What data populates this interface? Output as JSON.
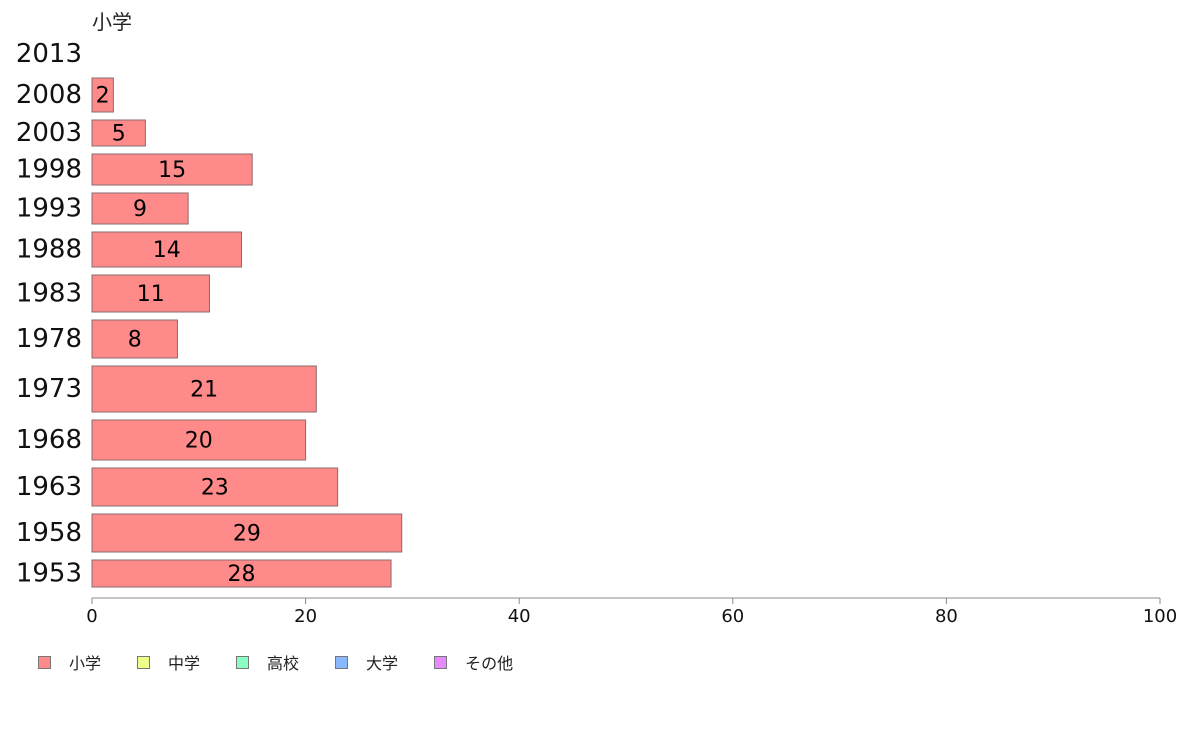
{
  "chart_data": {
    "type": "bar",
    "orientation": "horizontal",
    "title": "小学",
    "categories": [
      "2013",
      "2008",
      "2003",
      "1998",
      "1993",
      "1988",
      "1983",
      "1978",
      "1973",
      "1968",
      "1963",
      "1958",
      "1953"
    ],
    "series": [
      {
        "name": "小学",
        "color": "#ff8a8a",
        "values": [
          null,
          2,
          5,
          15,
          9,
          14,
          11,
          8,
          21,
          20,
          23,
          29,
          28
        ]
      }
    ],
    "xlim": [
      0,
      100
    ],
    "xticks": [
      "0",
      "20",
      "40",
      "60",
      "80",
      "100"
    ],
    "grid": false,
    "legend_position": "bottom-left"
  },
  "legend": [
    {
      "label": "小学",
      "color": "#ff8a8a"
    },
    {
      "label": "中学",
      "color": "#eeff8a"
    },
    {
      "label": "高校",
      "color": "#8affc4"
    },
    {
      "label": "大学",
      "color": "#8ab8ff"
    },
    {
      "label": "その他",
      "color": "#e88aff"
    }
  ]
}
